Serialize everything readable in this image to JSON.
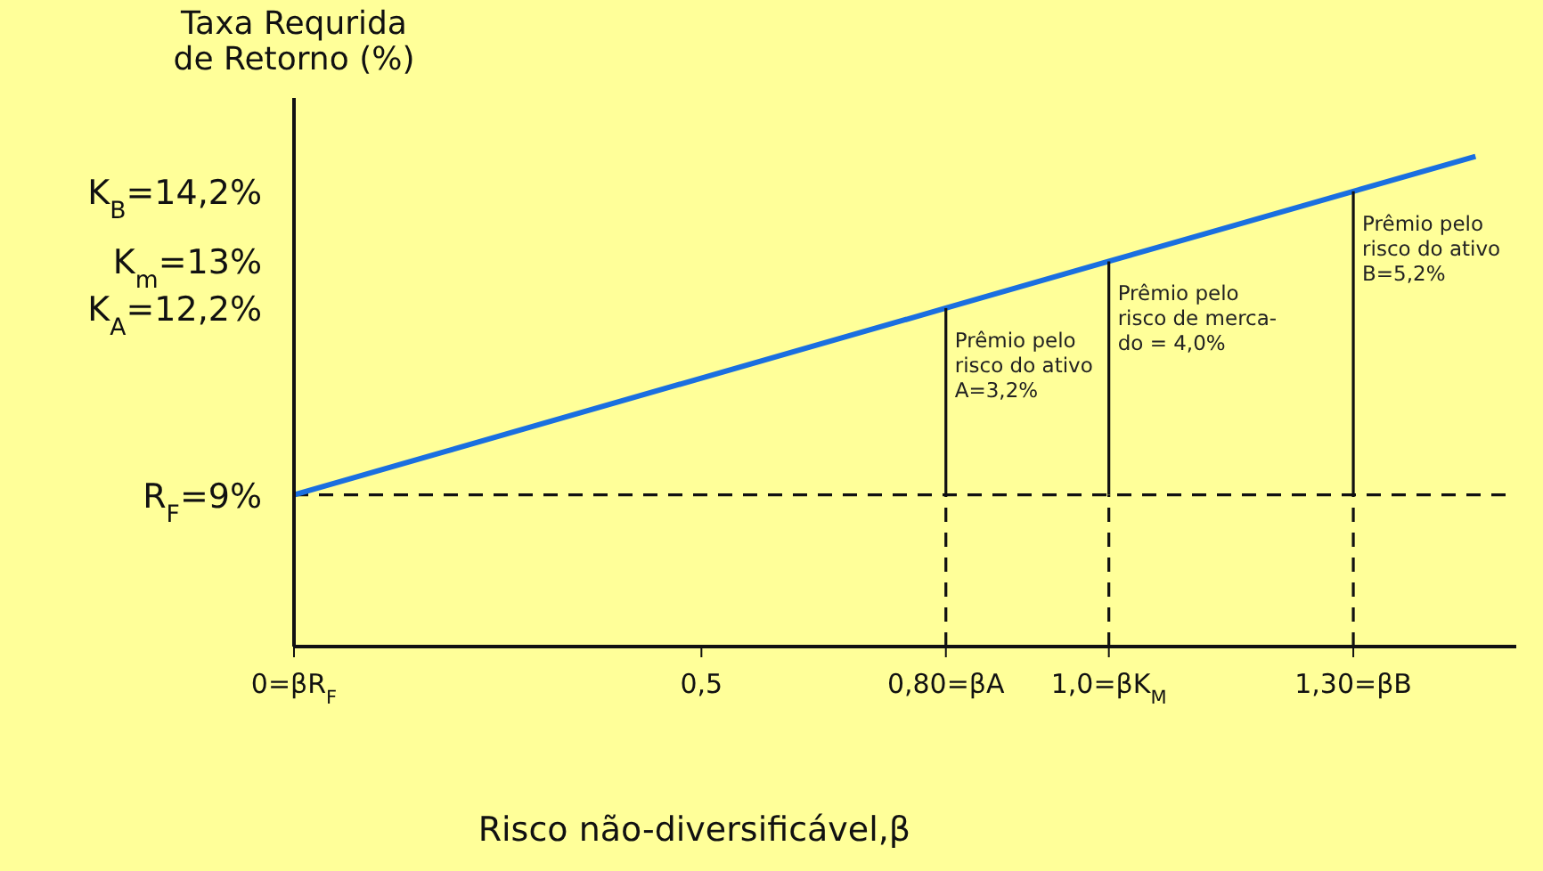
{
  "chart_data": {
    "type": "line",
    "xlabel": "Risco não-diversificável,β",
    "ylabel": "Taxa Requrida\nde Retorno (%)",
    "xlim": [
      0,
      1.5
    ],
    "ylim": [
      6.4,
      15.8
    ],
    "xticks": [
      {
        "value": 0,
        "label": "0=βR$_{F}$"
      },
      {
        "value": 0.5,
        "label": "0,5"
      },
      {
        "value": 0.8,
        "label": "0,80=βA"
      },
      {
        "value": 1.0,
        "label": "1,0=βK$_{M}$"
      },
      {
        "value": 1.3,
        "label": "1,30=βB"
      }
    ],
    "yticks": [
      {
        "value": 9,
        "label": "R$_{F}$=9%"
      },
      {
        "value": 12.2,
        "label": "K$_{A}$=12,2%"
      },
      {
        "value": 13,
        "label": "K$_{m}$=13%"
      },
      {
        "value": 14.2,
        "label": "K$_{B}$=14,2%"
      }
    ],
    "marker": "none",
    "grid": false,
    "series": [
      {
        "color": "#1a6fe0",
        "line_style": "solid",
        "x": [
          0,
          0.8,
          1.0,
          1.3,
          1.45
        ],
        "values": [
          9,
          12.2,
          13,
          14.2,
          14.8
        ]
      },
      {
        "type": "line",
        "color": "#111111",
        "line_style": "solid",
        "x": [
          0.8,
          0.8
        ],
        "values": [
          9,
          12.2
        ]
      },
      {
        "type": "line",
        "color": "#111111",
        "line_style": "solid",
        "x": [
          1.0,
          1.0
        ],
        "values": [
          9,
          13
        ]
      },
      {
        "type": "line",
        "color": "#111111",
        "line_style": "solid",
        "x": [
          1.3,
          1.3
        ],
        "values": [
          9,
          14.2
        ]
      },
      {
        "type": "line",
        "color": "#111111",
        "line_style": "dashed",
        "x": [
          0.8,
          0.8
        ],
        "values": [
          6.4,
          9
        ]
      },
      {
        "type": "line",
        "color": "#111111",
        "line_style": "dashed",
        "x": [
          1.0,
          1.0
        ],
        "values": [
          6.4,
          9
        ]
      },
      {
        "type": "line",
        "color": "#111111",
        "line_style": "dashed",
        "x": [
          1.3,
          1.3
        ],
        "values": [
          6.4,
          9
        ]
      }
    ],
    "ref_lines": [
      {
        "axis": "y",
        "value": 9,
        "color": "#111111",
        "line_style": "dashed"
      }
    ],
    "annotations": [
      {
        "text": "Prêmio pelo\nrisco do ativo\nA=3,2%",
        "x": 0.8,
        "y": 12.2
      },
      {
        "text": "Prêmio pelo\nrisco de merca-\ndo = 4,0%",
        "x": 1.0,
        "y": 13
      },
      {
        "text": "Prêmio pelo\nrisco do ativo\nB=5,2%",
        "x": 1.3,
        "y": 14.2
      }
    ]
  }
}
